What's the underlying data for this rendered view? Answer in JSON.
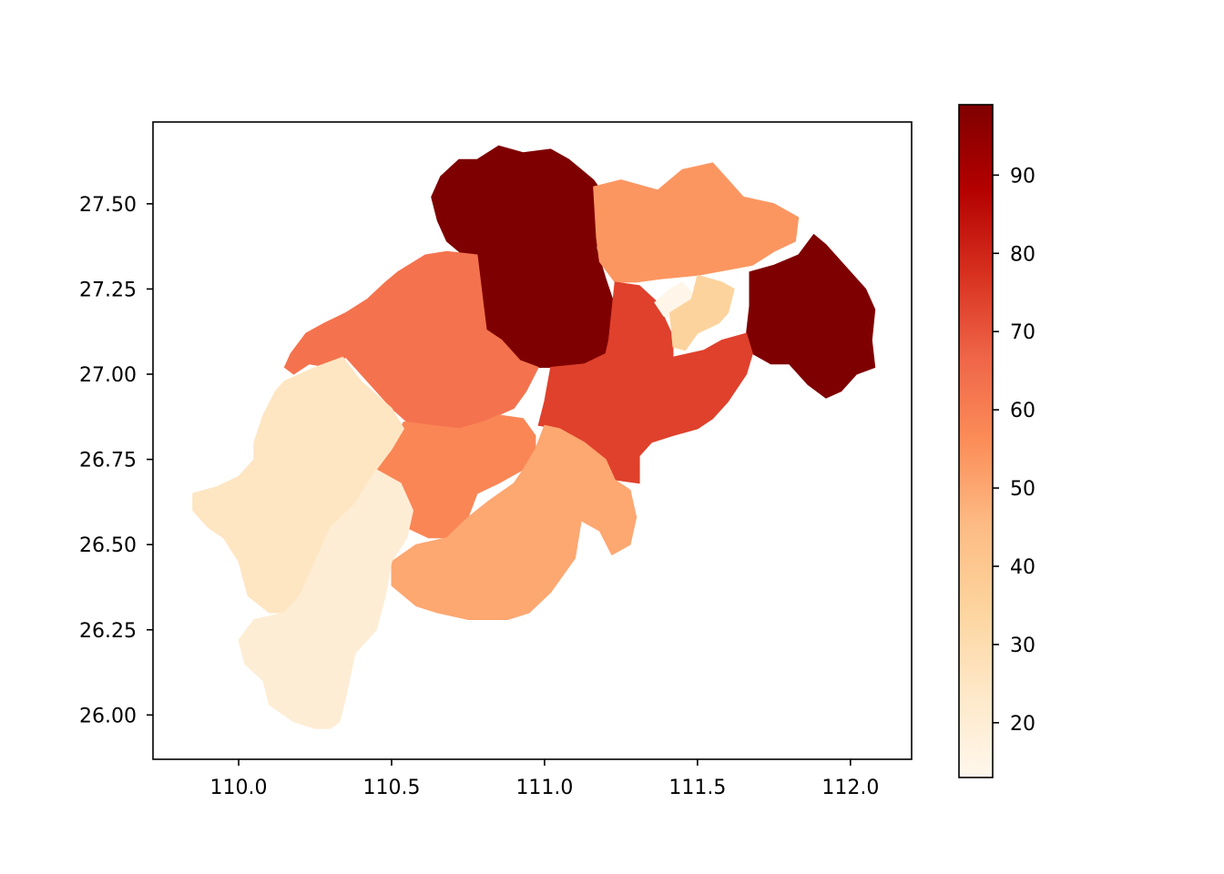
{
  "chart_data": {
    "type": "choropleth",
    "title": "",
    "xlabel": "",
    "ylabel": "",
    "xlim": [
      109.72,
      112.2
    ],
    "ylim": [
      25.87,
      27.74
    ],
    "xticks": [
      {
        "value": 110.0,
        "label": "110.0"
      },
      {
        "value": 110.5,
        "label": "110.5"
      },
      {
        "value": 111.0,
        "label": "111.0"
      },
      {
        "value": 111.5,
        "label": "111.5"
      },
      {
        "value": 112.0,
        "label": "112.0"
      }
    ],
    "yticks": [
      {
        "value": 26.0,
        "label": "26.00"
      },
      {
        "value": 26.25,
        "label": "26.25"
      },
      {
        "value": 26.5,
        "label": "26.50"
      },
      {
        "value": 26.75,
        "label": "26.75"
      },
      {
        "value": 27.0,
        "label": "27.00"
      },
      {
        "value": 27.25,
        "label": "27.25"
      },
      {
        "value": 27.5,
        "label": "27.50"
      }
    ],
    "colormap": "OrRd",
    "colorbar": {
      "min": 13,
      "max": 99,
      "ticks": [
        {
          "value": 20,
          "label": "20"
        },
        {
          "value": 30,
          "label": "30"
        },
        {
          "value": 40,
          "label": "40"
        },
        {
          "value": 50,
          "label": "50"
        },
        {
          "value": 60,
          "label": "60"
        },
        {
          "value": 70,
          "label": "70"
        },
        {
          "value": 80,
          "label": "80"
        },
        {
          "value": 90,
          "label": "90"
        }
      ]
    },
    "regions": [
      {
        "value": 99,
        "outline": [
          [
            110.66,
            27.58
          ],
          [
            110.72,
            27.63
          ],
          [
            110.78,
            27.63
          ],
          [
            110.85,
            27.67
          ],
          [
            110.93,
            27.65
          ],
          [
            111.02,
            27.66
          ],
          [
            111.08,
            27.63
          ],
          [
            111.16,
            27.57
          ],
          [
            111.2,
            27.52
          ],
          [
            111.18,
            27.45
          ],
          [
            111.17,
            27.37
          ],
          [
            111.2,
            27.28
          ],
          [
            111.23,
            27.2
          ],
          [
            111.21,
            27.1
          ],
          [
            111.2,
            27.06
          ],
          [
            111.13,
            27.03
          ],
          [
            111.02,
            27.02
          ],
          [
            110.98,
            27.02
          ],
          [
            110.92,
            27.04
          ],
          [
            110.86,
            27.1
          ],
          [
            110.81,
            27.13
          ],
          [
            110.8,
            27.2
          ],
          [
            110.78,
            27.3
          ],
          [
            110.72,
            27.36
          ],
          [
            110.68,
            27.39
          ],
          [
            110.65,
            27.45
          ],
          [
            110.63,
            27.52
          ]
        ]
      },
      {
        "value": 99,
        "outline": [
          [
            111.67,
            27.3
          ],
          [
            111.75,
            27.32
          ],
          [
            111.83,
            27.35
          ],
          [
            111.88,
            27.41
          ],
          [
            111.92,
            27.38
          ],
          [
            112.0,
            27.3
          ],
          [
            112.05,
            27.25
          ],
          [
            112.08,
            27.19
          ],
          [
            112.07,
            27.1
          ],
          [
            112.08,
            27.02
          ],
          [
            112.02,
            27.0
          ],
          [
            111.97,
            26.95
          ],
          [
            111.92,
            26.93
          ],
          [
            111.86,
            26.97
          ],
          [
            111.8,
            27.03
          ],
          [
            111.74,
            27.03
          ],
          [
            111.68,
            27.06
          ],
          [
            111.66,
            27.12
          ],
          [
            111.67,
            27.2
          ]
        ]
      },
      {
        "value": 54,
        "outline": [
          [
            111.16,
            27.55
          ],
          [
            111.25,
            27.57
          ],
          [
            111.37,
            27.54
          ],
          [
            111.45,
            27.6
          ],
          [
            111.55,
            27.62
          ],
          [
            111.6,
            27.57
          ],
          [
            111.65,
            27.52
          ],
          [
            111.75,
            27.5
          ],
          [
            111.83,
            27.46
          ],
          [
            111.82,
            27.39
          ],
          [
            111.75,
            27.36
          ],
          [
            111.68,
            27.32
          ],
          [
            111.62,
            27.31
          ],
          [
            111.5,
            27.29
          ],
          [
            111.38,
            27.28
          ],
          [
            111.3,
            27.27
          ],
          [
            111.23,
            27.27
          ],
          [
            111.18,
            27.33
          ],
          [
            111.17,
            27.4
          ]
        ]
      },
      {
        "value": 74,
        "outline": [
          [
            111.23,
            27.27
          ],
          [
            111.31,
            27.26
          ],
          [
            111.37,
            27.21
          ],
          [
            111.39,
            27.17
          ],
          [
            111.42,
            27.11
          ],
          [
            111.42,
            27.05
          ],
          [
            111.52,
            27.07
          ],
          [
            111.58,
            27.1
          ],
          [
            111.66,
            27.12
          ],
          [
            111.68,
            27.06
          ],
          [
            111.66,
            27.0
          ],
          [
            111.6,
            26.92
          ],
          [
            111.55,
            26.87
          ],
          [
            111.5,
            26.84
          ],
          [
            111.42,
            26.82
          ],
          [
            111.35,
            26.8
          ],
          [
            111.31,
            26.76
          ],
          [
            111.31,
            26.68
          ],
          [
            111.23,
            26.69
          ],
          [
            111.2,
            26.75
          ],
          [
            111.13,
            26.78
          ],
          [
            111.05,
            26.84
          ],
          [
            110.98,
            26.85
          ],
          [
            111.0,
            26.92
          ],
          [
            111.02,
            27.02
          ],
          [
            111.13,
            27.03
          ],
          [
            111.2,
            27.06
          ],
          [
            111.21,
            27.1
          ]
        ]
      },
      {
        "value": 14,
        "outline": [
          [
            111.36,
            27.21
          ],
          [
            111.41,
            27.25
          ],
          [
            111.45,
            27.27
          ],
          [
            111.48,
            27.24
          ],
          [
            111.48,
            27.17
          ],
          [
            111.43,
            27.16
          ],
          [
            111.39,
            27.17
          ]
        ]
      },
      {
        "value": 35,
        "outline": [
          [
            111.41,
            27.18
          ],
          [
            111.48,
            27.22
          ],
          [
            111.5,
            27.29
          ],
          [
            111.58,
            27.27
          ],
          [
            111.62,
            27.25
          ],
          [
            111.6,
            27.18
          ],
          [
            111.57,
            27.15
          ],
          [
            111.5,
            27.12
          ],
          [
            111.46,
            27.07
          ],
          [
            111.42,
            27.08
          ]
        ]
      },
      {
        "value": 63,
        "outline": [
          [
            110.35,
            27.18
          ],
          [
            110.42,
            27.22
          ],
          [
            110.48,
            27.27
          ],
          [
            110.52,
            27.3
          ],
          [
            110.61,
            27.35
          ],
          [
            110.68,
            27.36
          ],
          [
            110.78,
            27.35
          ],
          [
            110.8,
            27.2
          ],
          [
            110.81,
            27.13
          ],
          [
            110.86,
            27.1
          ],
          [
            110.92,
            27.04
          ],
          [
            110.98,
            27.02
          ],
          [
            110.94,
            26.95
          ],
          [
            110.9,
            26.9
          ],
          [
            110.8,
            26.86
          ],
          [
            110.72,
            26.84
          ],
          [
            110.61,
            26.85
          ],
          [
            110.55,
            26.86
          ],
          [
            110.5,
            26.9
          ],
          [
            110.45,
            26.95
          ],
          [
            110.38,
            27.02
          ],
          [
            110.35,
            27.05
          ],
          [
            110.3,
            27.02
          ],
          [
            110.23,
            27.03
          ],
          [
            110.18,
            27.0
          ],
          [
            110.15,
            27.02
          ],
          [
            110.17,
            27.06
          ],
          [
            110.22,
            27.12
          ],
          [
            110.28,
            27.15
          ]
        ]
      },
      {
        "value": 58,
        "outline": [
          [
            110.54,
            26.86
          ],
          [
            110.63,
            26.85
          ],
          [
            110.72,
            26.84
          ],
          [
            110.8,
            26.86
          ],
          [
            110.85,
            26.88
          ],
          [
            110.93,
            26.87
          ],
          [
            110.97,
            26.82
          ],
          [
            110.97,
            26.75
          ],
          [
            110.93,
            26.72
          ],
          [
            110.85,
            26.68
          ],
          [
            110.78,
            26.65
          ],
          [
            110.75,
            26.58
          ],
          [
            110.7,
            26.52
          ],
          [
            110.62,
            26.52
          ],
          [
            110.55,
            26.55
          ],
          [
            110.48,
            26.6
          ],
          [
            110.42,
            26.65
          ],
          [
            110.45,
            26.72
          ],
          [
            110.5,
            26.8
          ]
        ]
      },
      {
        "value": 50,
        "outline": [
          [
            110.97,
            26.78
          ],
          [
            111.0,
            26.85
          ],
          [
            111.05,
            26.84
          ],
          [
            111.13,
            26.8
          ],
          [
            111.2,
            26.75
          ],
          [
            111.23,
            26.69
          ],
          [
            111.28,
            26.66
          ],
          [
            111.3,
            26.58
          ],
          [
            111.28,
            26.5
          ],
          [
            111.22,
            26.47
          ],
          [
            111.18,
            26.54
          ],
          [
            111.12,
            26.57
          ],
          [
            111.1,
            26.46
          ],
          [
            111.02,
            26.36
          ],
          [
            110.95,
            26.3
          ],
          [
            110.88,
            26.28
          ],
          [
            110.75,
            26.28
          ],
          [
            110.65,
            26.3
          ],
          [
            110.58,
            26.32
          ],
          [
            110.5,
            26.38
          ],
          [
            110.5,
            26.45
          ],
          [
            110.58,
            26.5
          ],
          [
            110.68,
            26.52
          ],
          [
            110.75,
            26.58
          ],
          [
            110.82,
            26.63
          ],
          [
            110.9,
            26.68
          ],
          [
            110.93,
            26.72
          ]
        ]
      },
      {
        "value": 25,
        "outline": [
          [
            110.15,
            26.98
          ],
          [
            110.25,
            27.02
          ],
          [
            110.34,
            27.05
          ],
          [
            110.4,
            26.98
          ],
          [
            110.5,
            26.9
          ],
          [
            110.54,
            26.84
          ],
          [
            110.5,
            26.78
          ],
          [
            110.45,
            26.72
          ],
          [
            110.42,
            26.65
          ],
          [
            110.35,
            26.58
          ],
          [
            110.3,
            26.52
          ],
          [
            110.25,
            26.45
          ],
          [
            110.22,
            26.37
          ],
          [
            110.18,
            26.3
          ],
          [
            110.1,
            26.3
          ],
          [
            110.03,
            26.35
          ],
          [
            110.0,
            26.45
          ],
          [
            109.95,
            26.52
          ],
          [
            109.9,
            26.55
          ],
          [
            109.85,
            26.6
          ],
          [
            109.85,
            26.65
          ],
          [
            109.93,
            26.67
          ],
          [
            110.0,
            26.7
          ],
          [
            110.05,
            26.75
          ],
          [
            110.05,
            26.8
          ],
          [
            110.08,
            26.88
          ],
          [
            110.12,
            26.95
          ]
        ]
      },
      {
        "value": 20,
        "outline": [
          [
            110.45,
            26.72
          ],
          [
            110.53,
            26.68
          ],
          [
            110.57,
            26.6
          ],
          [
            110.55,
            26.52
          ],
          [
            110.5,
            26.45
          ],
          [
            110.48,
            26.35
          ],
          [
            110.45,
            26.25
          ],
          [
            110.38,
            26.18
          ],
          [
            110.35,
            26.05
          ],
          [
            110.33,
            25.98
          ],
          [
            110.3,
            25.96
          ],
          [
            110.25,
            25.96
          ],
          [
            110.18,
            25.98
          ],
          [
            110.1,
            26.03
          ],
          [
            110.08,
            26.1
          ],
          [
            110.02,
            26.15
          ],
          [
            110.0,
            26.22
          ],
          [
            110.05,
            26.28
          ],
          [
            110.15,
            26.3
          ],
          [
            110.2,
            26.35
          ],
          [
            110.25,
            26.45
          ],
          [
            110.3,
            26.55
          ],
          [
            110.38,
            26.62
          ]
        ]
      }
    ]
  }
}
